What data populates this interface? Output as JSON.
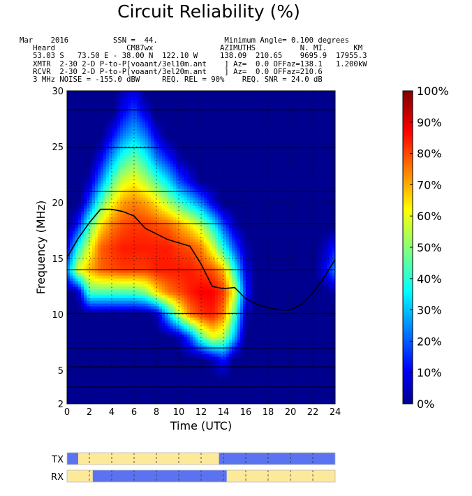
{
  "title": "Circuit Reliability (%)",
  "header_lines": [
    "Mar    2016          SSN =  44.               Minimum Angle= 0.100 degrees",
    "   Heard                CM87wx               AZIMUTHS          N. MI.      KM",
    "   53.03 S   73.50 E - 38.00 N  122.10 W     138.09  210.65    9695.9  17955.3",
    "   XMTR  2-30 2-D P-to-P[voaant/3el10m.ant    ] Az=  0.0 OFFaz=138.1   1.200kW",
    "   RCVR  2-30 2-D P-to-P[voaant/3el20m.ant    ] Az=  0.0 OFFaz=210.6",
    "   3 MHz NOISE = -155.0 dBW     REQ. REL = 90%    REQ. SNR = 24.0 dB"
  ],
  "chart_data": {
    "type": "heatmap",
    "title": "Circuit Reliability (%)",
    "xlabel": "Time (UTC)",
    "ylabel": "Frequency (MHz)",
    "xlim": [
      0,
      24
    ],
    "ylim": [
      2,
      30
    ],
    "x_ticks": [
      "0",
      "2",
      "4",
      "6",
      "8",
      "10",
      "12",
      "14",
      "16",
      "18",
      "20",
      "22",
      "24"
    ],
    "x_tick_values": [
      0,
      2,
      4,
      6,
      8,
      10,
      12,
      14,
      16,
      18,
      20,
      22,
      24
    ],
    "y_ticks": [
      "2",
      "5",
      "10",
      "15",
      "20",
      "25",
      "30"
    ],
    "y_tick_values": [
      2,
      5,
      10,
      15,
      20,
      25,
      30
    ],
    "grid": "dotted",
    "band_lines_mhz": [
      3.5,
      5.3,
      7.0,
      10.1,
      14.0,
      18.1,
      21.0,
      24.9,
      28.3
    ],
    "hours": [
      0,
      1,
      2,
      3,
      4,
      5,
      6,
      7,
      8,
      9,
      10,
      11,
      12,
      13,
      14,
      15,
      16,
      17,
      18,
      19,
      20,
      21,
      22,
      23,
      24
    ],
    "frequencies_mhz": [
      2,
      4,
      6,
      8,
      10,
      12,
      14,
      16,
      18,
      20,
      22,
      24,
      26,
      28,
      30
    ],
    "reliability_pct": [
      [
        0,
        0,
        0,
        0,
        0,
        0,
        0,
        0,
        0,
        0,
        0,
        0,
        0,
        0,
        0,
        0,
        0,
        0,
        0,
        0,
        0,
        0,
        0,
        0,
        0
      ],
      [
        0,
        0,
        0,
        0,
        0,
        0,
        0,
        0,
        0,
        0,
        0,
        0,
        0,
        0,
        0,
        0,
        0,
        0,
        0,
        0,
        0,
        0,
        0,
        0,
        0
      ],
      [
        0,
        0,
        0,
        0,
        0,
        0,
        0,
        0,
        0,
        0,
        0,
        0,
        0,
        5,
        15,
        0,
        0,
        0,
        0,
        0,
        0,
        0,
        0,
        0,
        0
      ],
      [
        0,
        0,
        0,
        0,
        0,
        0,
        0,
        0,
        0,
        0,
        5,
        20,
        45,
        60,
        55,
        30,
        0,
        0,
        0,
        0,
        0,
        0,
        0,
        0,
        0
      ],
      [
        0,
        0,
        0,
        0,
        0,
        0,
        0,
        0,
        5,
        30,
        55,
        75,
        82,
        85,
        75,
        45,
        5,
        0,
        0,
        0,
        0,
        0,
        0,
        0,
        0
      ],
      [
        0,
        5,
        45,
        45,
        45,
        45,
        45,
        50,
        65,
        75,
        80,
        85,
        88,
        88,
        82,
        60,
        15,
        0,
        0,
        0,
        0,
        0,
        0,
        0,
        5
      ],
      [
        25,
        60,
        70,
        78,
        80,
        82,
        82,
        82,
        85,
        85,
        85,
        85,
        82,
        80,
        70,
        40,
        10,
        0,
        0,
        0,
        0,
        0,
        0,
        10,
        25
      ],
      [
        10,
        40,
        60,
        78,
        82,
        85,
        85,
        85,
        85,
        85,
        82,
        80,
        75,
        60,
        40,
        20,
        5,
        0,
        0,
        0,
        0,
        0,
        0,
        5,
        15
      ],
      [
        0,
        15,
        45,
        65,
        75,
        80,
        82,
        82,
        80,
        78,
        72,
        65,
        55,
        40,
        20,
        5,
        0,
        0,
        0,
        0,
        0,
        0,
        0,
        0,
        0
      ],
      [
        0,
        0,
        20,
        45,
        62,
        72,
        75,
        72,
        65,
        55,
        45,
        35,
        25,
        10,
        0,
        0,
        0,
        0,
        0,
        0,
        0,
        0,
        0,
        0,
        0
      ],
      [
        0,
        0,
        5,
        25,
        45,
        58,
        62,
        55,
        45,
        35,
        20,
        10,
        0,
        0,
        0,
        0,
        0,
        0,
        0,
        0,
        0,
        0,
        0,
        0,
        0
      ],
      [
        0,
        0,
        0,
        10,
        28,
        42,
        48,
        40,
        25,
        15,
        5,
        0,
        0,
        0,
        0,
        0,
        0,
        0,
        0,
        0,
        0,
        0,
        0,
        0,
        0
      ],
      [
        0,
        0,
        0,
        0,
        12,
        25,
        32,
        25,
        10,
        0,
        0,
        0,
        0,
        0,
        0,
        0,
        0,
        0,
        0,
        0,
        0,
        0,
        0,
        0,
        0
      ],
      [
        0,
        0,
        0,
        0,
        0,
        12,
        20,
        10,
        0,
        0,
        0,
        0,
        0,
        0,
        0,
        0,
        0,
        0,
        0,
        0,
        0,
        0,
        0,
        0,
        0
      ],
      [
        0,
        0,
        0,
        0,
        0,
        5,
        10,
        0,
        0,
        0,
        0,
        0,
        0,
        0,
        0,
        0,
        0,
        0,
        0,
        0,
        0,
        0,
        0,
        0,
        0
      ]
    ],
    "muf_curve": {
      "x": [
        0,
        1,
        2,
        3,
        4,
        5,
        6,
        7,
        8,
        9,
        10,
        11,
        12,
        12.5,
        13,
        14,
        15,
        16,
        17,
        18,
        19,
        20,
        21,
        22,
        23,
        24
      ],
      "y": [
        15.1,
        16.8,
        18.2,
        19.4,
        19.4,
        19.2,
        18.8,
        17.7,
        17.2,
        16.7,
        16.4,
        16.1,
        14.5,
        13.5,
        12.5,
        12.3,
        12.4,
        11.4,
        10.9,
        10.6,
        10.4,
        10.4,
        10.9,
        11.9,
        13.3,
        14.9
      ]
    },
    "colorbar": {
      "ticks": [
        "0%",
        "10%",
        "20%",
        "30%",
        "40%",
        "50%",
        "60%",
        "70%",
        "80%",
        "90%",
        "100%"
      ],
      "range": [
        0,
        100
      ]
    },
    "tx_bar": {
      "label": "TX",
      "segments": [
        {
          "from": 0,
          "to": 1,
          "state": "off"
        },
        {
          "from": 1,
          "to": 13.6,
          "state": "on"
        },
        {
          "from": 13.6,
          "to": 24,
          "state": "off"
        }
      ]
    },
    "rx_bar": {
      "label": "RX",
      "segments": [
        {
          "from": 0,
          "to": 2.3,
          "state": "on"
        },
        {
          "from": 2.3,
          "to": 14.3,
          "state": "off"
        },
        {
          "from": 14.3,
          "to": 24,
          "state": "on"
        }
      ]
    },
    "colors": {
      "on": "#fde99a",
      "off": "#5b73f0",
      "muf": "#000000"
    }
  }
}
